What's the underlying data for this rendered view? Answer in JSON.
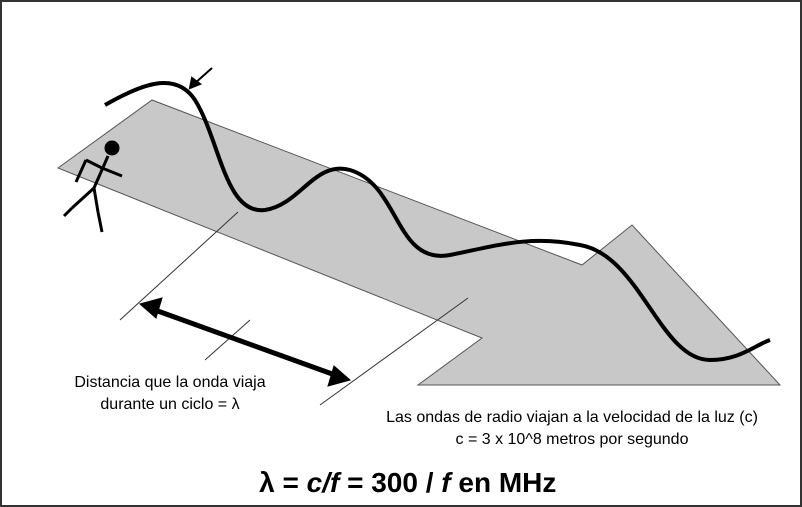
{
  "annotations": {
    "distance_label": [
      "Distancia que la onda viaja",
      "durante un ciclo = λ"
    ],
    "speed_label": [
      "Las ondas de radio viajan a la velocidad de la luz (c)",
      "c = 3 x 10^8 metros por segundo"
    ]
  },
  "formula": {
    "parts": [
      "λ = ",
      "c/f",
      " = 300 / ",
      "f",
      " en MHz"
    ]
  }
}
